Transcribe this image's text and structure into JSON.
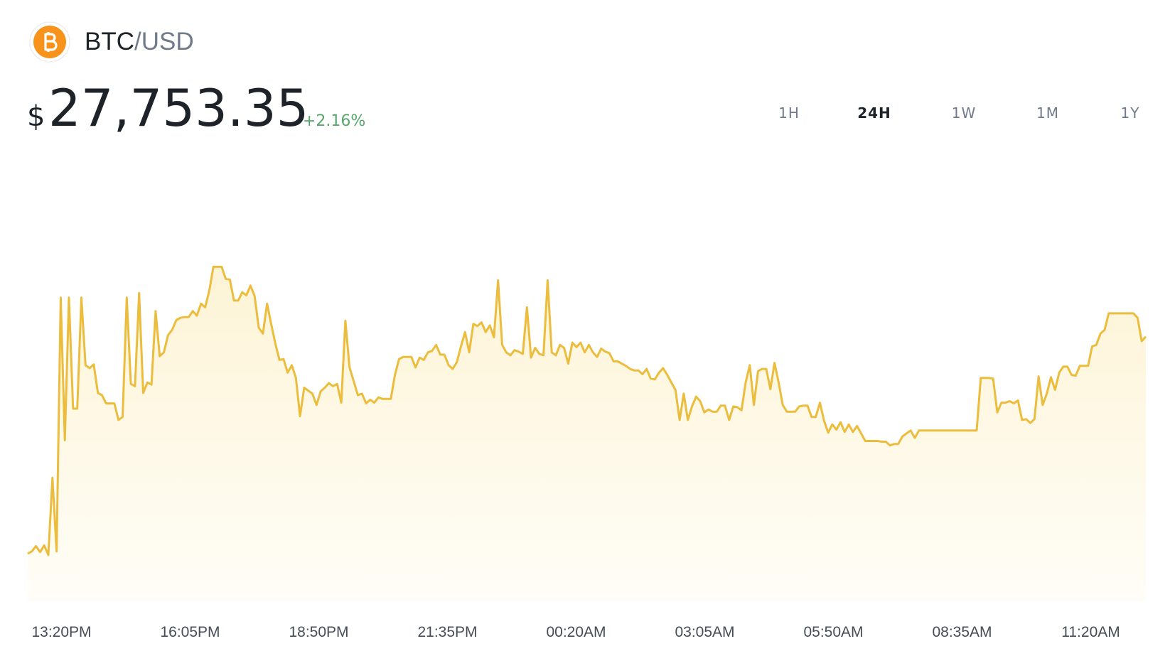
{
  "header": {
    "base": "BTC",
    "quote": "/USD",
    "currency": "$",
    "price": "27,753.35",
    "change": "+2.16%"
  },
  "timeframes": {
    "options": [
      "1H",
      "24H",
      "1W",
      "1M",
      "1Y"
    ],
    "active": "24H"
  },
  "chart_data": {
    "type": "line",
    "color": "#ecbd3c",
    "ylim": [
      27050,
      28150
    ],
    "xtick_labels": [
      "13:20PM",
      "16:05PM",
      "18:50PM",
      "21:35PM",
      "00:20AM",
      "03:05AM",
      "05:50AM",
      "08:35AM",
      "11:20AM"
    ],
    "values": [
      27177,
      27183,
      27197,
      27181,
      27199,
      27173,
      27379,
      27183,
      27859,
      27479,
      27859,
      27563,
      27563,
      27859,
      27679,
      27671,
      27681,
      27605,
      27599,
      27577,
      27577,
      27577,
      27533,
      27541,
      27859,
      27629,
      27623,
      27871,
      27605,
      27633,
      27627,
      27823,
      27703,
      27713,
      27759,
      27773,
      27799,
      27805,
      27807,
      27807,
      27823,
      27811,
      27843,
      27833,
      27877,
      27941,
      27941,
      27941,
      27909,
      27907,
      27851,
      27851,
      27873,
      27865,
      27891,
      27863,
      27779,
      27763,
      27843,
      27789,
      27737,
      27693,
      27695,
      27659,
      27679,
      27645,
      27543,
      27619,
      27611,
      27603,
      27573,
      27609,
      27619,
      27631,
      27623,
      27629,
      27579,
      27797,
      27673,
      27637,
      27599,
      27603,
      27577,
      27587,
      27579,
      27593,
      27589,
      27589,
      27589,
      27653,
      27695,
      27701,
      27701,
      27701,
      27673,
      27699,
      27693,
      27713,
      27717,
      27733,
      27707,
      27707,
      27679,
      27669,
      27687,
      27729,
      27767,
      27713,
      27789,
      27783,
      27793,
      27767,
      27785,
      27753,
      27905,
      27733,
      27713,
      27705,
      27719,
      27715,
      27709,
      27833,
      27699,
      27725,
      27709,
      27705,
      27905,
      27713,
      27705,
      27733,
      27725,
      27683,
      27739,
      27727,
      27739,
      27713,
      27733,
      27713,
      27701,
      27723,
      27715,
      27711,
      27689,
      27689,
      27683,
      27677,
      27669,
      27665,
      27665,
      27655,
      27669,
      27643,
      27641,
      27659,
      27671,
      27653,
      27633,
      27613,
      27533,
      27603,
      27533,
      27569,
      27595,
      27583,
      27553,
      27561,
      27555,
      27555,
      27571,
      27571,
      27533,
      27569,
      27567,
      27559,
      27633,
      27679,
      27573,
      27663,
      27669,
      27669,
      27615,
      27685,
      27633,
      27573,
      27555,
      27555,
      27555,
      27569,
      27571,
      27571,
      27541,
      27541,
      27579,
      27531,
      27499,
      27521,
      27507,
      27527,
      27501,
      27521,
      27501,
      27517,
      27497,
      27477,
      27477,
      27477,
      27477,
      27475,
      27475,
      27465,
      27469,
      27469,
      27489,
      27497,
      27505,
      27485,
      27505,
      27505,
      27505,
      27505,
      27505,
      27505,
      27505,
      27505,
      27505,
      27505,
      27505,
      27505,
      27505,
      27505,
      27505,
      27645,
      27645,
      27645,
      27643,
      27553,
      27579,
      27579,
      27583,
      27577,
      27585,
      27533,
      27535,
      27525,
      27535,
      27649,
      27573,
      27603,
      27647,
      27613,
      27659,
      27675,
      27675,
      27653,
      27651,
      27677,
      27677,
      27677,
      27729,
      27733,
      27763,
      27773,
      27817,
      27817,
      27817,
      27817,
      27817,
      27817,
      27817,
      27805,
      27743,
      27755
    ]
  }
}
